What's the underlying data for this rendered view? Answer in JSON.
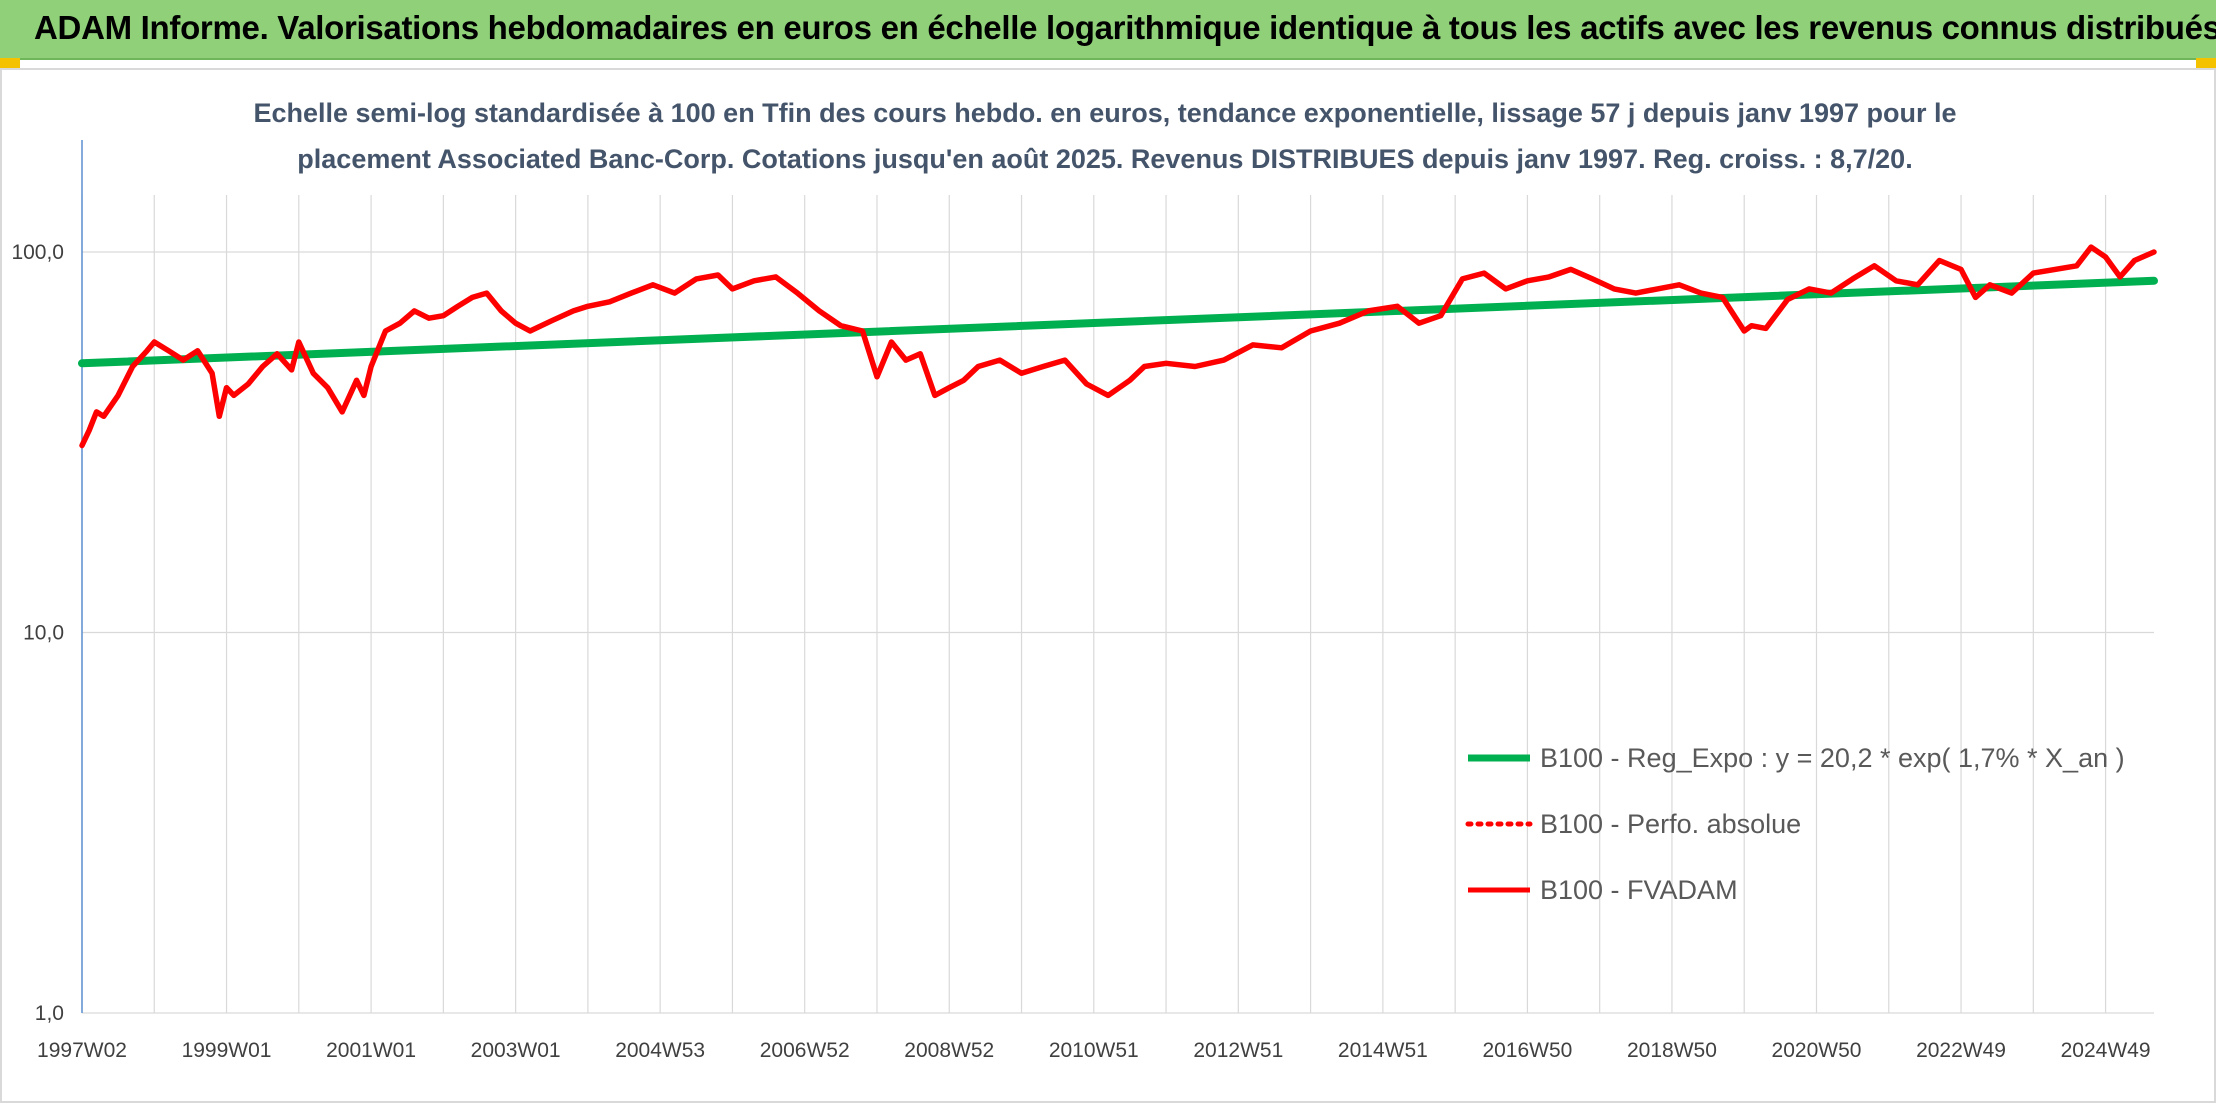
{
  "banner": {
    "title": "ADAM Informe. Valorisations hebdomadaires en euros en échelle logarithmique identique à tous les actifs avec les revenus connus distribués",
    "color": "#8fd079"
  },
  "chart_data": {
    "type": "line",
    "subtitle_line1": "Echelle semi-log standardisée à 100 en Tfin des cours hebdo. en euros, tendance exponentielle, lissage 57 j depuis janv 1997 pour le",
    "subtitle_line2": "placement Associated Banc-Corp. Cotations jusqu'en août 2025. Revenus DISTRIBUES depuis janv 1997. Reg. croiss. : 8,7/20.",
    "y_scale": "log",
    "ylim": [
      1,
      100
    ],
    "y_ticks": [
      {
        "value": 100,
        "label": "100,0"
      },
      {
        "value": 10,
        "label": "10,0"
      },
      {
        "value": 1,
        "label": "1,0"
      }
    ],
    "xlim": [
      1997.0,
      2025.67
    ],
    "x_ticks": [
      {
        "value": 1997.0,
        "label": "1997W02"
      },
      {
        "value": 1999.0,
        "label": "1999W01"
      },
      {
        "value": 2001.0,
        "label": "2001W01"
      },
      {
        "value": 2003.0,
        "label": "2003W01"
      },
      {
        "value": 2005.0,
        "label": "2004W53"
      },
      {
        "value": 2007.0,
        "label": "2006W52"
      },
      {
        "value": 2009.0,
        "label": "2008W52"
      },
      {
        "value": 2011.0,
        "label": "2010W51"
      },
      {
        "value": 2013.0,
        "label": "2012W51"
      },
      {
        "value": 2015.0,
        "label": "2014W51"
      },
      {
        "value": 2017.0,
        "label": "2016W50"
      },
      {
        "value": 2019.0,
        "label": "2018W50"
      },
      {
        "value": 2021.0,
        "label": "2020W50"
      },
      {
        "value": 2023.0,
        "label": "2022W49"
      },
      {
        "value": 2025.0,
        "label": "2024W49"
      }
    ],
    "grid": true,
    "legend_position": "bottom-right",
    "series": [
      {
        "name": "B100 - Reg_Expo : y = 20,2 * exp( 1,7% *  X_an )",
        "color": "#00b050",
        "style": "solid",
        "x": [
          1997.0,
          2025.67
        ],
        "y": [
          51,
          84
        ]
      },
      {
        "name": "B100 - Perfo. absolue",
        "color": "#ff0000",
        "style": "dotted",
        "x": [],
        "y": []
      },
      {
        "name": "B100 - FVADAM",
        "color": "#ff0000",
        "style": "solid",
        "x": [
          1997.0,
          1997.1,
          1997.2,
          1997.3,
          1997.5,
          1997.7,
          1997.9,
          1998.0,
          1998.2,
          1998.4,
          1998.6,
          1998.8,
          1998.9,
          1999.0,
          1999.1,
          1999.3,
          1999.5,
          1999.7,
          1999.9,
          2000.0,
          2000.2,
          2000.4,
          2000.6,
          2000.8,
          2000.9,
          2001.0,
          2001.2,
          2001.4,
          2001.6,
          2001.8,
          2002.0,
          2002.2,
          2002.4,
          2002.6,
          2002.8,
          2003.0,
          2003.2,
          2003.5,
          2003.8,
          2004.0,
          2004.3,
          2004.6,
          2004.9,
          2005.2,
          2005.5,
          2005.8,
          2006.0,
          2006.3,
          2006.6,
          2006.9,
          2007.2,
          2007.5,
          2007.8,
          2008.0,
          2008.2,
          2008.4,
          2008.6,
          2008.8,
          2009.0,
          2009.2,
          2009.4,
          2009.7,
          2010.0,
          2010.3,
          2010.6,
          2010.9,
          2011.2,
          2011.5,
          2011.7,
          2012.0,
          2012.4,
          2012.8,
          2013.2,
          2013.6,
          2014.0,
          2014.4,
          2014.8,
          2015.2,
          2015.5,
          2015.8,
          2016.1,
          2016.4,
          2016.7,
          2017.0,
          2017.3,
          2017.6,
          2017.9,
          2018.2,
          2018.5,
          2018.8,
          2019.1,
          2019.4,
          2019.7,
          2020.0,
          2020.1,
          2020.3,
          2020.6,
          2020.9,
          2021.2,
          2021.5,
          2021.8,
          2022.1,
          2022.4,
          2022.7,
          2023.0,
          2023.2,
          2023.4,
          2023.7,
          2024.0,
          2024.3,
          2024.6,
          2024.8,
          2025.0,
          2025.2,
          2025.4,
          2025.67
        ],
        "y": [
          31,
          34,
          38,
          37,
          42,
          50,
          55,
          58,
          55,
          52,
          55,
          48,
          37,
          44,
          42,
          45,
          50,
          54,
          49,
          58,
          48,
          44,
          38,
          46,
          42,
          50,
          62,
          65,
          70,
          67,
          68,
          72,
          76,
          78,
          70,
          65,
          62,
          66,
          70,
          72,
          74,
          78,
          82,
          78,
          85,
          87,
          80,
          84,
          86,
          78,
          70,
          64,
          62,
          47,
          58,
          52,
          54,
          42,
          44,
          46,
          50,
          52,
          48,
          50,
          52,
          45,
          42,
          46,
          50,
          51,
          50,
          52,
          57,
          56,
          62,
          65,
          70,
          72,
          65,
          68,
          85,
          88,
          80,
          84,
          86,
          90,
          85,
          80,
          78,
          80,
          82,
          78,
          76,
          62,
          64,
          63,
          75,
          80,
          78,
          85,
          92,
          84,
          82,
          95,
          90,
          76,
          82,
          78,
          88,
          90,
          92,
          103,
          97,
          86,
          95,
          100
        ]
      }
    ]
  }
}
